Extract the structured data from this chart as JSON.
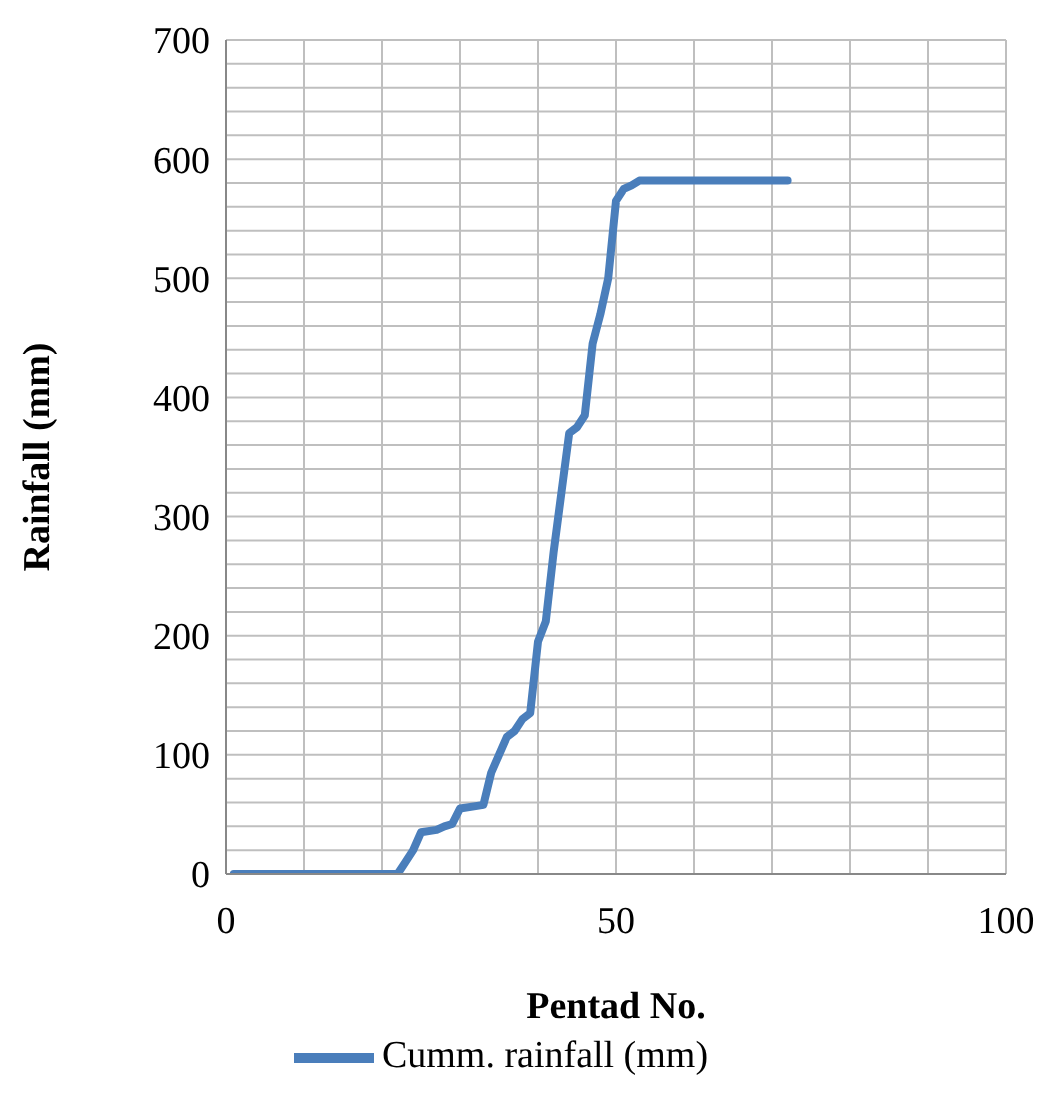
{
  "chart_data": {
    "type": "line",
    "xlabel": "Pentad No.",
    "ylabel": "Rainfall (mm)",
    "xlim": [
      0,
      100
    ],
    "xticks": [
      0,
      50,
      100
    ],
    "ylim": [
      0,
      700
    ],
    "yticks": [
      0,
      100,
      200,
      300,
      400,
      500,
      600,
      700
    ],
    "grid": true,
    "legend": "bottom",
    "marker": "none",
    "line_style": "solid",
    "series": [
      {
        "name": "Cumm. rainfall (mm)",
        "color": "#4a7ebb",
        "x": [
          1,
          22,
          23,
          24,
          25,
          27,
          28,
          29,
          30,
          32,
          33,
          34,
          35,
          36,
          37,
          38,
          39,
          40,
          41,
          42,
          43,
          44,
          45,
          46,
          47,
          48,
          49,
          50,
          51,
          52,
          53,
          72
        ],
        "values": [
          0,
          0,
          10,
          20,
          35,
          37,
          40,
          42,
          55,
          57,
          58,
          85,
          100,
          115,
          120,
          130,
          135,
          195,
          212,
          270,
          320,
          370,
          375,
          385,
          445,
          470,
          500,
          565,
          575,
          578,
          582,
          582
        ]
      }
    ]
  }
}
